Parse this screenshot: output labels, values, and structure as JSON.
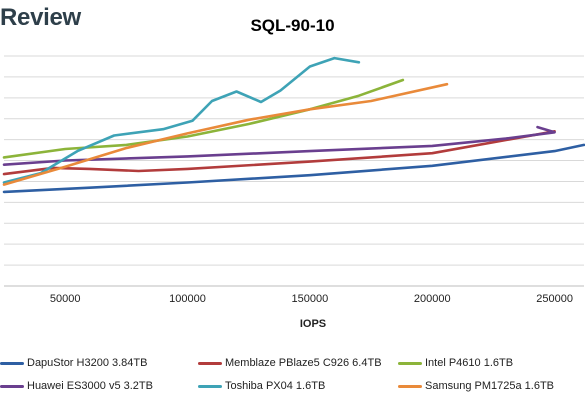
{
  "brand": "Review",
  "chart_data": {
    "type": "line",
    "title": "SQL-90-10",
    "xlabel": "IOPS",
    "ylabel": "",
    "xlim": [
      25000,
      262000
    ],
    "ylim": [
      0,
      11
    ],
    "x_ticks": [
      50000,
      100000,
      150000,
      200000,
      250000
    ],
    "y_gridlines": 11,
    "grid": true,
    "legend_position": "bottom",
    "series": [
      {
        "name": "DapuStor H3200 3.84TB",
        "color": "#2e5fa3",
        "points": [
          [
            25000,
            4.5
          ],
          [
            60000,
            4.7
          ],
          [
            100000,
            4.95
          ],
          [
            150000,
            5.3
          ],
          [
            200000,
            5.75
          ],
          [
            250000,
            6.45
          ],
          [
            262000,
            6.75
          ]
        ]
      },
      {
        "name": "Memblaze PBlaze5 C926 6.4TB",
        "color": "#b23c3c",
        "points": [
          [
            25000,
            5.35
          ],
          [
            45000,
            5.65
          ],
          [
            60000,
            5.6
          ],
          [
            80000,
            5.5
          ],
          [
            100000,
            5.6
          ],
          [
            150000,
            5.95
          ],
          [
            200000,
            6.35
          ],
          [
            250000,
            7.4
          ]
        ]
      },
      {
        "name": "Intel P4610 1.6TB",
        "color": "#8cb43a",
        "points": [
          [
            25000,
            6.15
          ],
          [
            50000,
            6.55
          ],
          [
            75000,
            6.75
          ],
          [
            100000,
            7.15
          ],
          [
            125000,
            7.75
          ],
          [
            150000,
            8.45
          ],
          [
            170000,
            9.1
          ],
          [
            188000,
            9.85
          ]
        ]
      },
      {
        "name": "Huawei ES3000 v5 3.2TB",
        "color": "#6a3f8f",
        "points": [
          [
            25000,
            5.8
          ],
          [
            50000,
            6.0
          ],
          [
            100000,
            6.2
          ],
          [
            150000,
            6.45
          ],
          [
            200000,
            6.7
          ],
          [
            230000,
            7.05
          ],
          [
            250000,
            7.35
          ],
          [
            243000,
            7.6
          ]
        ]
      },
      {
        "name": "Toshiba PX04 1.6TB",
        "color": "#3ea3b6",
        "points": [
          [
            25000,
            4.95
          ],
          [
            40000,
            5.4
          ],
          [
            55000,
            6.45
          ],
          [
            70000,
            7.2
          ],
          [
            90000,
            7.5
          ],
          [
            102000,
            7.9
          ],
          [
            110000,
            8.85
          ],
          [
            120000,
            9.3
          ],
          [
            130000,
            8.8
          ],
          [
            138000,
            9.35
          ],
          [
            150000,
            10.5
          ],
          [
            160000,
            10.9
          ],
          [
            170000,
            10.7
          ]
        ]
      },
      {
        "name": "Samsung PM1725a 1.6TB",
        "color": "#e98a3a",
        "points": [
          [
            25000,
            4.85
          ],
          [
            50000,
            5.7
          ],
          [
            75000,
            6.6
          ],
          [
            100000,
            7.3
          ],
          [
            125000,
            7.95
          ],
          [
            150000,
            8.45
          ],
          [
            175000,
            8.85
          ],
          [
            206000,
            9.65
          ]
        ]
      }
    ]
  }
}
